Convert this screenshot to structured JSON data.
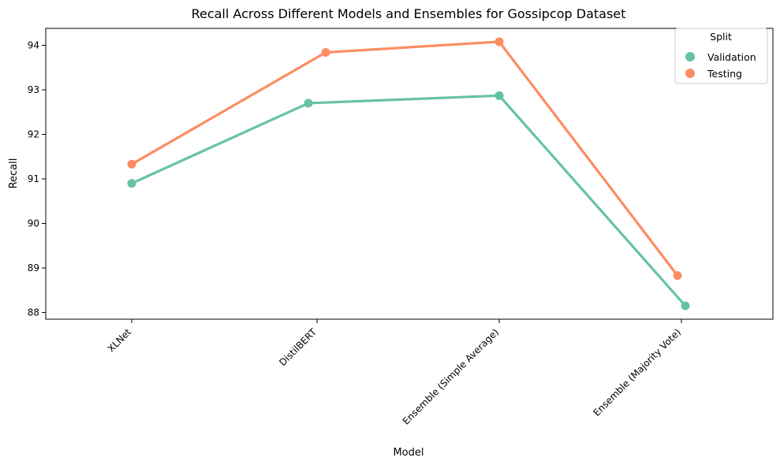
{
  "chart_data": {
    "type": "line",
    "title": "Recall Across Different Models and Ensembles for Gossipcop Dataset",
    "xlabel": "Model",
    "ylabel": "Recall",
    "categories": [
      "XLNet",
      "DistilBERT",
      "Ensemble (Simple Average)",
      "Ensemble (Majority Vote)"
    ],
    "series": [
      {
        "name": "Validation",
        "color": "#66c2a5",
        "values": [
          90.9,
          92.7,
          92.87,
          88.15
        ]
      },
      {
        "name": "Testing",
        "color": "#fc8d62",
        "values": [
          91.33,
          93.84,
          94.08,
          88.83
        ]
      }
    ],
    "yticks": [
      "88",
      "89",
      "90",
      "91",
      "92",
      "93",
      "94"
    ],
    "ylim": [
      87.85,
      94.38
    ],
    "legend": {
      "title": "Split",
      "position": "top-right"
    },
    "grid": false
  }
}
